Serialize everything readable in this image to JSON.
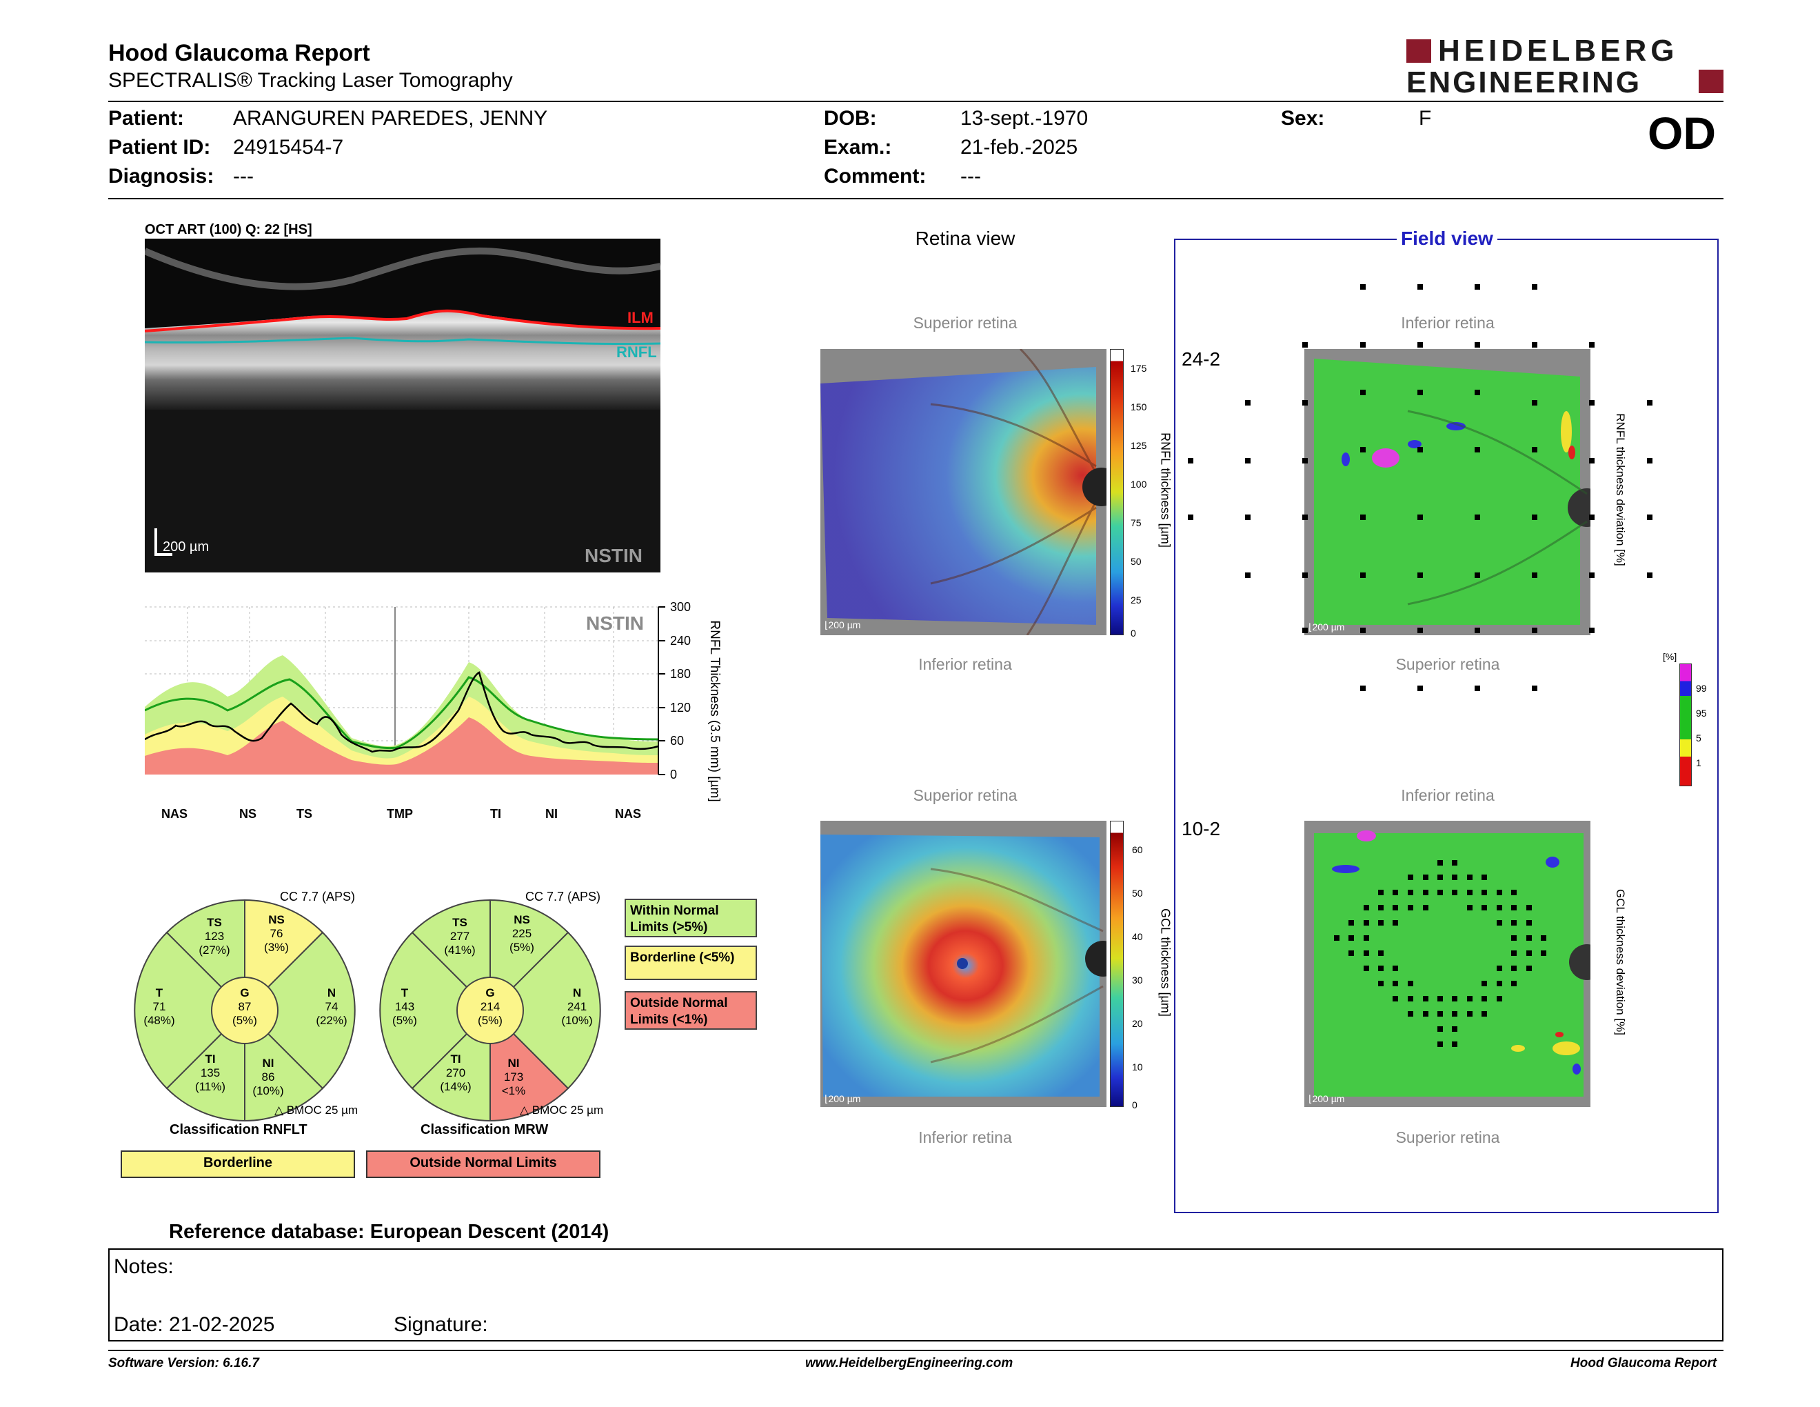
{
  "header": {
    "title": "Hood Glaucoma Report",
    "subtitle": "SPECTRALIS® Tracking Laser Tomography",
    "logo_line1": "HEIDELBERG",
    "logo_line2": "ENGINEERING",
    "eye": "OD"
  },
  "patient": {
    "patient_label": "Patient:",
    "patient_value": "ARANGUREN PAREDES, JENNY",
    "id_label": "Patient ID:",
    "id_value": "24915454-7",
    "diag_label": "Diagnosis:",
    "diag_value": "---",
    "dob_label": "DOB:",
    "dob_value": "13-sept.-1970",
    "exam_label": "Exam.:",
    "exam_value": "21-feb.-2025",
    "comment_label": "Comment:",
    "comment_value": "---",
    "sex_label": "Sex:",
    "sex_value": "F"
  },
  "oct": {
    "title": "OCT ART (100) Q: 22 [HS]",
    "ilm": "ILM",
    "rnfl": "RNFL",
    "scale": "200 µm",
    "nstin": "NSTIN"
  },
  "profile": {
    "nstin": "NSTIN",
    "ylabel": "RNFL Thickness (3.5 mm) [µm]",
    "yticks": [
      "300",
      "240",
      "180",
      "120",
      "60",
      "0"
    ],
    "sectors": [
      "NAS",
      "NS",
      "TS",
      "TMP",
      "TI",
      "NI",
      "NAS"
    ]
  },
  "rnflt_pie": {
    "cc": "CC 7.7 (APS)",
    "caption": "Classification RNFLT",
    "bmoc": "BMOC 25 µm",
    "TS": {
      "label": "TS",
      "value": "123",
      "pct": "(27%)"
    },
    "NS": {
      "label": "NS",
      "value": "76",
      "pct": "(3%)"
    },
    "T": {
      "label": "T",
      "value": "71",
      "pct": "(48%)"
    },
    "N": {
      "label": "N",
      "value": "74",
      "pct": "(22%)"
    },
    "TI": {
      "label": "TI",
      "value": "135",
      "pct": "(11%)"
    },
    "NI": {
      "label": "NI",
      "value": "86",
      "pct": "(10%)"
    },
    "G": {
      "label": "G",
      "value": "87",
      "pct": "(5%)"
    },
    "classification": "Borderline"
  },
  "mrw_pie": {
    "cc": "CC 7.7 (APS)",
    "caption": "Classification MRW",
    "bmoc": "BMOC 25 µm",
    "TS": {
      "label": "TS",
      "value": "277",
      "pct": "(41%)"
    },
    "NS": {
      "label": "NS",
      "value": "225",
      "pct": "(5%)"
    },
    "T": {
      "label": "T",
      "value": "143",
      "pct": "(5%)"
    },
    "N": {
      "label": "N",
      "value": "241",
      "pct": "(10%)"
    },
    "TI": {
      "label": "TI",
      "value": "270",
      "pct": "(14%)"
    },
    "NI": {
      "label": "NI",
      "value": "173",
      "pct": "<1%"
    },
    "G": {
      "label": "G",
      "value": "214",
      "pct": "(5%)"
    },
    "classification": "Outside Normal Limits"
  },
  "legend": {
    "within": "Within Normal Limits (>5%)",
    "borderline": "Borderline (<5%)",
    "outside": "Outside Normal Limits (<1%)",
    "colors": {
      "within": "#c6f08a",
      "borderline": "#fbf58a",
      "outside": "#f4877e"
    }
  },
  "retina_view": {
    "title": "Retina view",
    "top1": "Superior retina",
    "bottom1": "Inferior retina",
    "top2": "Superior retina",
    "bottom2": "Inferior retina",
    "scale": "200 µm",
    "rnfl_bar_label": "RNFL thickness [µm]",
    "rnfl_ticks": [
      "175",
      "150",
      "125",
      "100",
      "75",
      "50",
      "25",
      "0"
    ],
    "gcl_bar_label": "GCL thickness [µm]",
    "gcl_ticks": [
      "60",
      "50",
      "40",
      "30",
      "20",
      "10",
      "0"
    ]
  },
  "field_view": {
    "title": "Field view",
    "label_242": "24-2",
    "label_102": "10-2",
    "top1": "Inferior retina",
    "bottom1": "Superior retina",
    "top2": "Inferior retina",
    "bottom2": "Superior retina",
    "scale": "200 µm",
    "rnfl_dev_label": "RNFL thickness deviation [%]",
    "gcl_dev_label": "GCL thickness deviation [%]",
    "pct_unit": "[%]",
    "pct_ticks": [
      "99",
      "95",
      "5",
      "1"
    ]
  },
  "footer": {
    "reference": "Reference database: European Descent (2014)",
    "notes_label": "Notes:",
    "date": "Date: 21-02-2025",
    "signature": "Signature:",
    "software": "Software Version: 6.16.7",
    "website": "www.HeidelbergEngineering.com",
    "report": "Hood Glaucoma Report"
  }
}
